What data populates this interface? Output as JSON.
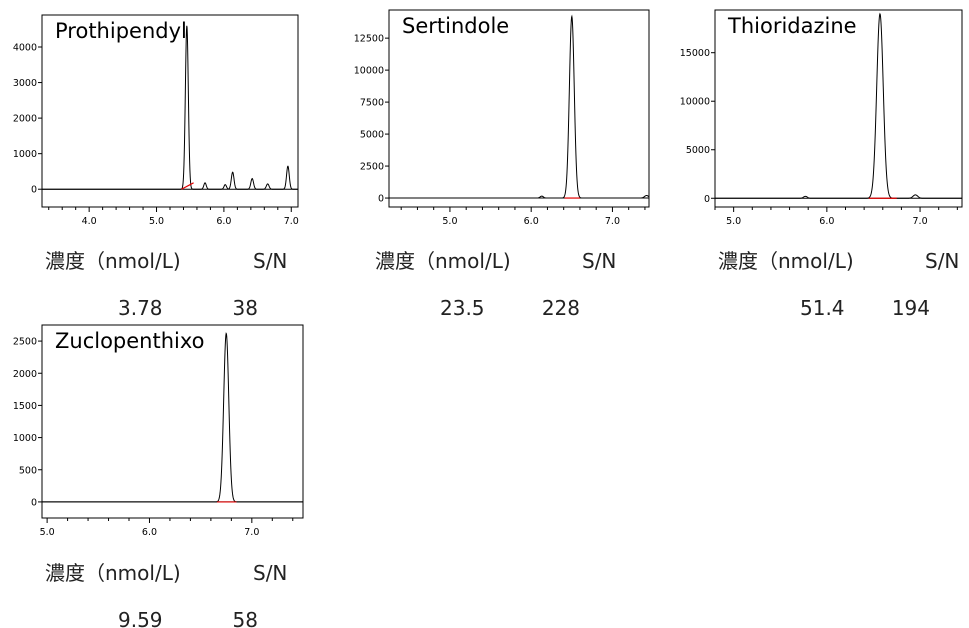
{
  "chart_data": [
    {
      "type": "line",
      "title": "Prothipendyl",
      "xlabel": "",
      "ylabel": "",
      "xlim": [
        3.3,
        7.1
      ],
      "ylim": [
        -500,
        4900
      ],
      "x_ticks": [
        "4.0",
        "5.0",
        "6.0",
        "7.0"
      ],
      "y_ticks": [
        "0",
        "1000",
        "2000",
        "3000",
        "4000"
      ],
      "series": [
        {
          "peaks": [
            {
              "x": 5.45,
              "height": 4600,
              "width": 0.022
            },
            {
              "x": 5.72,
              "height": 180,
              "width": 0.018
            },
            {
              "x": 6.02,
              "height": 130,
              "width": 0.018
            },
            {
              "x": 6.13,
              "height": 480,
              "width": 0.02
            },
            {
              "x": 6.42,
              "height": 300,
              "width": 0.02
            },
            {
              "x": 6.65,
              "height": 150,
              "width": 0.02
            },
            {
              "x": 6.95,
              "height": 650,
              "width": 0.02
            }
          ]
        }
      ],
      "baseline_segment": {
        "x": [
          5.37,
          5.55
        ],
        "y": [
          0,
          180
        ]
      },
      "caption": {
        "conc_label": "濃度（nmol/L)",
        "conc_value": "3.78",
        "sn_label": "S/N",
        "sn_value": "38"
      }
    },
    {
      "type": "line",
      "title": "Sertindole",
      "xlabel": "",
      "ylabel": "",
      "xlim": [
        4.25,
        7.45
      ],
      "ylim": [
        -700,
        14700
      ],
      "x_ticks": [
        "5.0",
        "6.0",
        "7.0"
      ],
      "y_ticks": [
        "0",
        "2500",
        "5000",
        "7500",
        "10000",
        "12500"
      ],
      "series": [
        {
          "peaks": [
            {
              "x": 6.13,
              "height": 150,
              "width": 0.02
            },
            {
              "x": 6.5,
              "height": 14200,
              "width": 0.03
            },
            {
              "x": 7.42,
              "height": 200,
              "width": 0.025
            }
          ]
        }
      ],
      "baseline_segment": {
        "x": [
          6.41,
          6.6
        ],
        "y": [
          0,
          0
        ]
      },
      "caption": {
        "conc_label": "濃度（nmol/L)",
        "conc_value": "23.5",
        "sn_label": "S/N",
        "sn_value": "228"
      }
    },
    {
      "type": "line",
      "title": "Thioridazine",
      "xlabel": "",
      "ylabel": "",
      "xlim": [
        4.8,
        7.45
      ],
      "ylim": [
        -900,
        19400
      ],
      "x_ticks": [
        "5.0",
        "6.0",
        "7.0"
      ],
      "y_ticks": [
        "0",
        "5000",
        "10000",
        "15000"
      ],
      "series": [
        {
          "peaks": [
            {
              "x": 5.77,
              "height": 200,
              "width": 0.02
            },
            {
              "x": 6.57,
              "height": 19000,
              "width": 0.035
            },
            {
              "x": 6.95,
              "height": 350,
              "width": 0.025
            }
          ]
        }
      ],
      "baseline_segment": {
        "x": [
          6.45,
          6.75
        ],
        "y": [
          0,
          0
        ]
      },
      "caption": {
        "conc_label": "濃度（nmol/L)",
        "conc_value": "51.4",
        "sn_label": "S/N",
        "sn_value": "194"
      }
    },
    {
      "type": "line",
      "title": "Zuclopenthixo",
      "xlabel": "",
      "ylabel": "",
      "xlim": [
        4.95,
        7.5
      ],
      "ylim": [
        -250,
        2750
      ],
      "x_ticks": [
        "5.0",
        "6.0",
        "7.0"
      ],
      "y_ticks": [
        "0",
        "500",
        "1000",
        "1500",
        "2000",
        "2500"
      ],
      "series": [
        {
          "peaks": [
            {
              "x": 6.75,
              "height": 2620,
              "width": 0.025
            }
          ]
        }
      ],
      "baseline_segment": {
        "x": [
          6.66,
          6.85
        ],
        "y": [
          0,
          0
        ]
      },
      "caption": {
        "conc_label": "濃度（nmol/L)",
        "conc_value": "9.59",
        "sn_label": "S/N",
        "sn_value": "58"
      }
    }
  ],
  "colors": {
    "trace": "#000000",
    "baseline": "#e00000",
    "axis": "#000000"
  }
}
